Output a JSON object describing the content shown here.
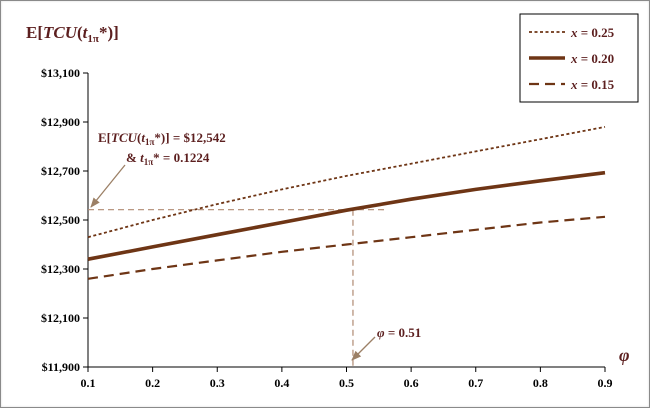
{
  "colors": {
    "series": "#6e3515",
    "annotation": "#5c1f1f",
    "guide": "#b08a72",
    "axis": "#000000"
  },
  "chart_data": {
    "type": "line",
    "ylabel_parts": [
      "E[",
      "TCU",
      "(",
      "t",
      "1π",
      "*)]"
    ],
    "xlabel": "φ",
    "xlim": [
      0.1,
      0.9
    ],
    "ylim": [
      11900,
      13100
    ],
    "x_ticks": [
      {
        "v": 0.1,
        "label": "0.1"
      },
      {
        "v": 0.2,
        "label": "0.2"
      },
      {
        "v": 0.3,
        "label": "0.3"
      },
      {
        "v": 0.4,
        "label": "0.4"
      },
      {
        "v": 0.5,
        "label": "0.5"
      },
      {
        "v": 0.6,
        "label": "0.6"
      },
      {
        "v": 0.7,
        "label": "0.7"
      },
      {
        "v": 0.8,
        "label": "0.8"
      },
      {
        "v": 0.9,
        "label": "0.9"
      }
    ],
    "y_ticks": [
      {
        "v": 11900,
        "label": "$11,900"
      },
      {
        "v": 12100,
        "label": "$12,100"
      },
      {
        "v": 12300,
        "label": "$12,300"
      },
      {
        "v": 12500,
        "label": "$12,500"
      },
      {
        "v": 12700,
        "label": "$12,700"
      },
      {
        "v": 12900,
        "label": "$12,900"
      },
      {
        "v": 13100,
        "label": "$13,100"
      }
    ],
    "grid": false,
    "legend_position": "top-right",
    "series": [
      {
        "name_var": "x",
        "name_val": " = 0.25",
        "style": "dotted",
        "x": [
          0.1,
          0.2,
          0.3,
          0.4,
          0.5,
          0.6,
          0.7,
          0.8,
          0.9
        ],
        "y": [
          12430,
          12500,
          12565,
          12625,
          12680,
          12730,
          12780,
          12830,
          12880
        ]
      },
      {
        "name_var": "x",
        "name_val": " = 0.20",
        "style": "solid",
        "x": [
          0.1,
          0.2,
          0.3,
          0.4,
          0.5,
          0.6,
          0.7,
          0.8,
          0.9
        ],
        "y": [
          12340,
          12390,
          12440,
          12490,
          12540,
          12585,
          12625,
          12660,
          12693
        ]
      },
      {
        "name_var": "x",
        "name_val": " = 0.15",
        "style": "dashed",
        "x": [
          0.1,
          0.2,
          0.3,
          0.4,
          0.5,
          0.6,
          0.7,
          0.8,
          0.9
        ],
        "y": [
          12260,
          12300,
          12335,
          12370,
          12400,
          12430,
          12460,
          12490,
          12513
        ]
      }
    ],
    "highlight": {
      "x": 0.51,
      "y": 12542
    },
    "annotations": {
      "optimum_l1_parts": [
        "E[",
        "TCU",
        "(",
        "t",
        "1π",
        "*)] = $12,542"
      ],
      "optimum_l2_parts": [
        "& ",
        "t",
        "1π",
        "* = 0.1224"
      ],
      "phi_parts": [
        "φ",
        " = 0.51"
      ]
    }
  }
}
